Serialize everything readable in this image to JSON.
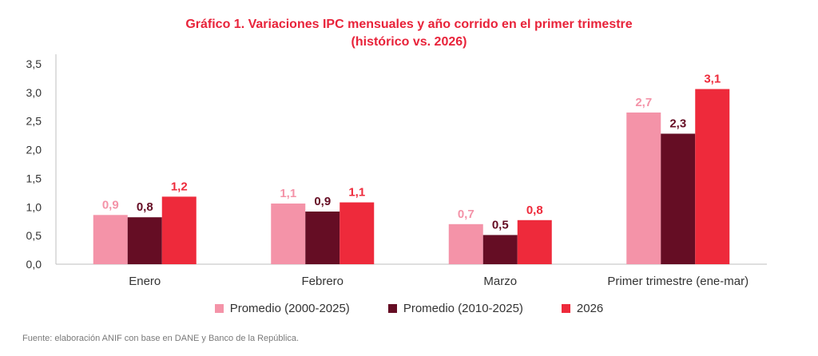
{
  "chart_data": {
    "type": "bar",
    "title_line1": "Gráfico 1. Variaciones IPC mensuales y año corrido en el primer trimestre",
    "title_line2": "(histórico vs. 2026)",
    "categories": [
      "Enero",
      "Febrero",
      "Marzo",
      "Primer trimestre (ene-mar)"
    ],
    "series": [
      {
        "name": "Promedio (2000-2025)",
        "color": "#f493a8",
        "values": [
          0.86,
          1.06,
          0.7,
          2.65
        ],
        "labels": [
          "0,9",
          "1,1",
          "0,7",
          "2,7"
        ]
      },
      {
        "name": "Promedio (2010-2025)",
        "color": "#650d24",
        "values": [
          0.82,
          0.92,
          0.51,
          2.28
        ],
        "labels": [
          "0,8",
          "0,9",
          "0,5",
          "2,3"
        ]
      },
      {
        "name": "2026",
        "color": "#ee2a3b",
        "values": [
          1.18,
          1.08,
          0.77,
          3.06
        ],
        "labels": [
          "1,2",
          "1,1",
          "0,8",
          "3,1"
        ]
      }
    ],
    "yticks": [
      "0,0",
      "0,5",
      "1,0",
      "1,5",
      "2,0",
      "2,5",
      "3,0",
      "3,5"
    ],
    "ylim": [
      0,
      3.5
    ],
    "legend_position": "bottom",
    "grid": false
  },
  "source": "Fuente: elaboración ANIF con base en DANE y Banco de la República."
}
